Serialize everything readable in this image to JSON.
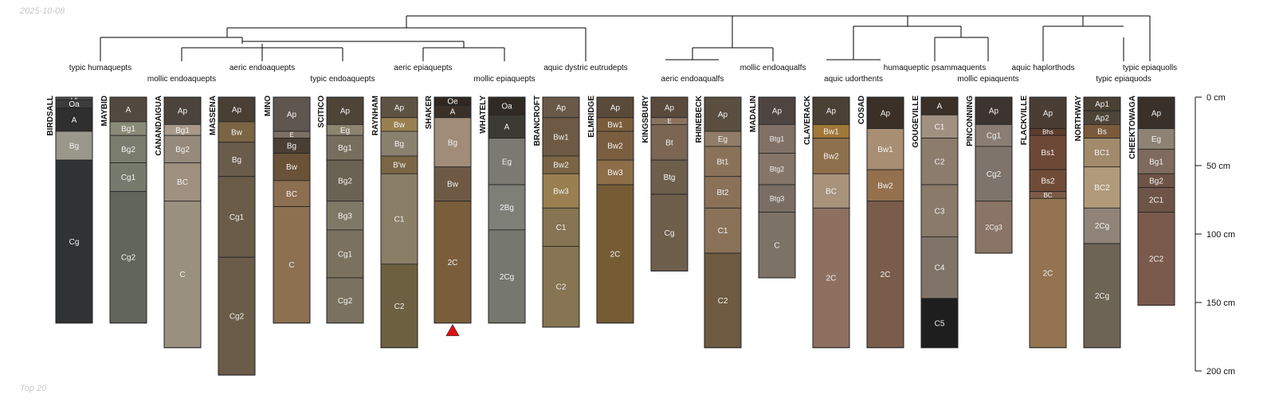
{
  "header": {
    "date": "2025-10-08"
  },
  "footer": {
    "label": "Top 20"
  },
  "colors": {
    "profile_outline": "#222222",
    "dendrogram": "#000000",
    "marker": "#e01010"
  },
  "depth_axis": {
    "unit": "cm",
    "max_depth": 200,
    "ticks": [
      0,
      50,
      100,
      150,
      200
    ]
  },
  "subgroups": [
    {
      "label": "typic humaquepts"
    },
    {
      "label": "mollic endoaquepts"
    },
    {
      "label": "aeric endoaquepts"
    },
    {
      "label": "typic endoaquepts"
    },
    {
      "label": "aeric epiaquepts"
    },
    {
      "label": "mollic epiaquepts"
    },
    {
      "label": "aquic dystric eutrudepts"
    },
    {
      "label": "aeric endoaqualfs"
    },
    {
      "label": "mollic endoaqualfs"
    },
    {
      "label": "aquic udorthents"
    },
    {
      "label": "humaqueptic psammaquents"
    },
    {
      "label": "mollic epiaquents"
    },
    {
      "label": "aquic haplorthods"
    },
    {
      "label": "typic epiaquods"
    },
    {
      "label": "typic epiaquolls"
    }
  ],
  "profiles": [
    {
      "name": "BIRDSALL",
      "horizons": [
        {
          "name": "Oi",
          "top": 0,
          "bottom": 2,
          "color": "#4a4a4a"
        },
        {
          "name": "Oa",
          "top": 2,
          "bottom": 8,
          "color": "#3c3c3c"
        },
        {
          "name": "A",
          "top": 8,
          "bottom": 25,
          "color": "#2f2f2f"
        },
        {
          "name": "Bg",
          "top": 25,
          "bottom": 46,
          "color": "#9a978b"
        },
        {
          "name": "Cg",
          "top": 46,
          "bottom": 165,
          "color": "#303234"
        }
      ]
    },
    {
      "name": "MAYBID",
      "horizons": [
        {
          "name": "A",
          "top": 0,
          "bottom": 18,
          "color": "#524a40"
        },
        {
          "name": "Bg1",
          "top": 18,
          "bottom": 28,
          "color": "#8a8a7a"
        },
        {
          "name": "Bg2",
          "top": 28,
          "bottom": 48,
          "color": "#7a7c6e"
        },
        {
          "name": "Cg1",
          "top": 48,
          "bottom": 69,
          "color": "#767a6c"
        },
        {
          "name": "Cg2",
          "top": 69,
          "bottom": 165,
          "color": "#62655a"
        }
      ]
    },
    {
      "name": "CANANDAIGUA",
      "horizons": [
        {
          "name": "Ap",
          "top": 0,
          "bottom": 20,
          "color": "#4c443c"
        },
        {
          "name": "Bg1",
          "top": 20,
          "bottom": 28,
          "color": "#a8998a"
        },
        {
          "name": "Bg2",
          "top": 28,
          "bottom": 48,
          "color": "#968a7c"
        },
        {
          "name": "BC",
          "top": 48,
          "bottom": 76,
          "color": "#a09080"
        },
        {
          "name": "C",
          "top": 76,
          "bottom": 183,
          "color": "#9a9080"
        }
      ]
    },
    {
      "name": "MASSENA",
      "horizons": [
        {
          "name": "Ap",
          "top": 0,
          "bottom": 18,
          "color": "#4a3f34"
        },
        {
          "name": "Bw",
          "top": 18,
          "bottom": 33,
          "color": "#7a6444"
        },
        {
          "name": "Bg",
          "top": 33,
          "bottom": 58,
          "color": "#6a5c4a"
        },
        {
          "name": "Cg1",
          "top": 58,
          "bottom": 117,
          "color": "#6a5c48"
        },
        {
          "name": "Cg2",
          "top": 117,
          "bottom": 203,
          "color": "#6a5c48"
        }
      ]
    },
    {
      "name": "MINO",
      "horizons": [
        {
          "name": "Ap",
          "top": 0,
          "bottom": 25,
          "color": "#605650"
        },
        {
          "name": "E",
          "top": 25,
          "bottom": 30,
          "color": "#7c6f64"
        },
        {
          "name": "Bg",
          "top": 30,
          "bottom": 41,
          "color": "#4a3f34"
        },
        {
          "name": "Bw",
          "top": 41,
          "bottom": 61,
          "color": "#6a5238"
        },
        {
          "name": "BC",
          "top": 61,
          "bottom": 80,
          "color": "#8c6e50"
        },
        {
          "name": "C",
          "top": 80,
          "bottom": 165,
          "color": "#8c7050"
        }
      ]
    },
    {
      "name": "SCITICO",
      "horizons": [
        {
          "name": "Ap",
          "top": 0,
          "bottom": 20,
          "color": "#4e4438"
        },
        {
          "name": "Eg",
          "top": 20,
          "bottom": 28,
          "color": "#8c8470"
        },
        {
          "name": "Bg1",
          "top": 28,
          "bottom": 46,
          "color": "#786e5e"
        },
        {
          "name": "Bg2",
          "top": 46,
          "bottom": 76,
          "color": "#6a6252"
        },
        {
          "name": "Bg3",
          "top": 76,
          "bottom": 97,
          "color": "#7e7866"
        },
        {
          "name": "Cg1",
          "top": 97,
          "bottom": 132,
          "color": "#7a725e"
        },
        {
          "name": "Cg2",
          "top": 132,
          "bottom": 165,
          "color": "#7a725e"
        }
      ]
    },
    {
      "name": "RAYNHAM",
      "horizons": [
        {
          "name": "Ap",
          "top": 0,
          "bottom": 15,
          "color": "#5e5242"
        },
        {
          "name": "Bw",
          "top": 15,
          "bottom": 25,
          "color": "#9a8050"
        },
        {
          "name": "Bg",
          "top": 25,
          "bottom": 43,
          "color": "#8a806e"
        },
        {
          "name": "B'w",
          "top": 43,
          "bottom": 56,
          "color": "#7a6644"
        },
        {
          "name": "C1",
          "top": 56,
          "bottom": 122,
          "color": "#8a7e66"
        },
        {
          "name": "C2",
          "top": 122,
          "bottom": 183,
          "color": "#6c6040"
        }
      ]
    },
    {
      "name": "SHAKER",
      "horizons": [
        {
          "name": "Oe",
          "top": 0,
          "bottom": 6,
          "color": "#302820"
        },
        {
          "name": "A",
          "top": 6,
          "bottom": 15,
          "color": "#3a3028"
        },
        {
          "name": "Bg",
          "top": 15,
          "bottom": 51,
          "color": "#a08c78"
        },
        {
          "name": "Bw",
          "top": 51,
          "bottom": 76,
          "color": "#6e5a44"
        },
        {
          "name": "2C",
          "top": 76,
          "bottom": 165,
          "color": "#7a5e3c"
        }
      ]
    },
    {
      "name": "WHATELY",
      "horizons": [
        {
          "name": "Oa",
          "top": 0,
          "bottom": 13,
          "color": "#302a24"
        },
        {
          "name": "A",
          "top": 13,
          "bottom": 30,
          "color": "#3c3a34"
        },
        {
          "name": "Eg",
          "top": 30,
          "bottom": 64,
          "color": "#7a7a72"
        },
        {
          "name": "2Bg",
          "top": 64,
          "bottom": 97,
          "color": "#7e8078"
        },
        {
          "name": "2Cg",
          "top": 97,
          "bottom": 165,
          "color": "#767870"
        }
      ]
    },
    {
      "name": "BRANCROFT",
      "horizons": [
        {
          "name": "Ap",
          "top": 0,
          "bottom": 15,
          "color": "#6a5848"
        },
        {
          "name": "Bw1",
          "top": 15,
          "bottom": 43,
          "color": "#6e5a44"
        },
        {
          "name": "Bw2",
          "top": 43,
          "bottom": 56,
          "color": "#7a6444"
        },
        {
          "name": "Bw3",
          "top": 56,
          "bottom": 81,
          "color": "#9a8050"
        },
        {
          "name": "C1",
          "top": 81,
          "bottom": 109,
          "color": "#867452"
        },
        {
          "name": "C2",
          "top": 109,
          "bottom": 168,
          "color": "#867452"
        }
      ]
    },
    {
      "name": "ELMRIDGE",
      "horizons": [
        {
          "name": "Ap",
          "top": 0,
          "bottom": 15,
          "color": "#5a4a3a"
        },
        {
          "name": "Bw1",
          "top": 15,
          "bottom": 25,
          "color": "#7a5e3c"
        },
        {
          "name": "Bw2",
          "top": 25,
          "bottom": 46,
          "color": "#7a5e40"
        },
        {
          "name": "Bw3",
          "top": 46,
          "bottom": 64,
          "color": "#8e6e48"
        },
        {
          "name": "2C",
          "top": 64,
          "bottom": 165,
          "color": "#765c34"
        }
      ]
    },
    {
      "name": "KINGSBURY",
      "horizons": [
        {
          "name": "Ap",
          "top": 0,
          "bottom": 15,
          "color": "#5a4a3c"
        },
        {
          "name": "E",
          "top": 15,
          "bottom": 20,
          "color": "#8a7460"
        },
        {
          "name": "Bt",
          "top": 20,
          "bottom": 46,
          "color": "#7a6652"
        },
        {
          "name": "Btg",
          "top": 46,
          "bottom": 71,
          "color": "#6e5e4c"
        },
        {
          "name": "Cg",
          "top": 71,
          "bottom": 127,
          "color": "#6e5e4c"
        }
      ]
    },
    {
      "name": "RHINEBECK",
      "horizons": [
        {
          "name": "Ap",
          "top": 0,
          "bottom": 25,
          "color": "#5a4e40"
        },
        {
          "name": "Eg",
          "top": 25,
          "bottom": 36,
          "color": "#907c68"
        },
        {
          "name": "Bt1",
          "top": 36,
          "bottom": 58,
          "color": "#8a7258"
        },
        {
          "name": "Bt2",
          "top": 58,
          "bottom": 81,
          "color": "#8a7258"
        },
        {
          "name": "C1",
          "top": 81,
          "bottom": 114,
          "color": "#8a7258"
        },
        {
          "name": "C2",
          "top": 114,
          "bottom": 183,
          "color": "#6e5a40"
        }
      ]
    },
    {
      "name": "MADALIN",
      "horizons": [
        {
          "name": "Ap",
          "top": 0,
          "bottom": 20,
          "color": "#4e4440"
        },
        {
          "name": "Btg1",
          "top": 20,
          "bottom": 41,
          "color": "#807066"
        },
        {
          "name": "Btg2",
          "top": 41,
          "bottom": 64,
          "color": "#857568"
        },
        {
          "name": "Btg3",
          "top": 64,
          "bottom": 84,
          "color": "#7a6e64"
        },
        {
          "name": "C",
          "top": 84,
          "bottom": 132,
          "color": "#7c7266"
        }
      ]
    },
    {
      "name": "CLAVERACK",
      "horizons": [
        {
          "name": "Ap",
          "top": 0,
          "bottom": 20,
          "color": "#4a4034"
        },
        {
          "name": "Bw1",
          "top": 20,
          "bottom": 30,
          "color": "#a07838"
        },
        {
          "name": "Bw2",
          "top": 30,
          "bottom": 56,
          "color": "#8e704c"
        },
        {
          "name": "BC",
          "top": 56,
          "bottom": 81,
          "color": "#a8927a"
        },
        {
          "name": "2C",
          "top": 81,
          "bottom": 183,
          "color": "#8e7060"
        }
      ]
    },
    {
      "name": "COSAD",
      "horizons": [
        {
          "name": "Ap",
          "top": 0,
          "bottom": 23,
          "color": "#3a3028"
        },
        {
          "name": "Bw1",
          "top": 23,
          "bottom": 53,
          "color": "#a88e72"
        },
        {
          "name": "Bw2",
          "top": 53,
          "bottom": 76,
          "color": "#94704e"
        },
        {
          "name": "2C",
          "top": 76,
          "bottom": 183,
          "color": "#7a5c4a"
        }
      ]
    },
    {
      "name": "GOUGEVILLE",
      "horizons": [
        {
          "name": "A",
          "top": 0,
          "bottom": 13,
          "color": "#3a3028"
        },
        {
          "name": "C1",
          "top": 13,
          "bottom": 30,
          "color": "#a09080"
        },
        {
          "name": "C2",
          "top": 30,
          "bottom": 64,
          "color": "#8c7c6c"
        },
        {
          "name": "C3",
          "top": 64,
          "bottom": 102,
          "color": "#8a7a6a"
        },
        {
          "name": "C4",
          "top": 102,
          "bottom": 147,
          "color": "#807468"
        },
        {
          "name": "C5",
          "top": 147,
          "bottom": 183,
          "color": "#1e1e1e"
        }
      ]
    },
    {
      "name": "PINCONNING",
      "horizons": [
        {
          "name": "Ap",
          "top": 0,
          "bottom": 20,
          "color": "#3c3430"
        },
        {
          "name": "Cg1",
          "top": 20,
          "bottom": 36,
          "color": "#8a7e74"
        },
        {
          "name": "Cg2",
          "top": 36,
          "bottom": 76,
          "color": "#7e746c"
        },
        {
          "name": "2Cg3",
          "top": 76,
          "bottom": 114,
          "color": "#8a7466"
        }
      ]
    },
    {
      "name": "FLACKVILLE",
      "horizons": [
        {
          "name": "Ap",
          "top": 0,
          "bottom": 23,
          "color": "#4a3e34"
        },
        {
          "name": "Bhs",
          "top": 23,
          "bottom": 28,
          "color": "#5c3c2c"
        },
        {
          "name": "Bs1",
          "top": 28,
          "bottom": 53,
          "color": "#6e4836"
        },
        {
          "name": "Bs2",
          "top": 53,
          "bottom": 69,
          "color": "#704c38"
        },
        {
          "name": "BC",
          "top": 69,
          "bottom": 74,
          "color": "#7c5c48"
        },
        {
          "name": "2C",
          "top": 74,
          "bottom": 183,
          "color": "#947450"
        }
      ]
    },
    {
      "name": "NORTHWAY",
      "horizons": [
        {
          "name": "Ap1",
          "top": 0,
          "bottom": 10,
          "color": "#4a4034"
        },
        {
          "name": "Ap2",
          "top": 10,
          "bottom": 20,
          "color": "#4e4438"
        },
        {
          "name": "Bs",
          "top": 20,
          "bottom": 30,
          "color": "#7a5a3a"
        },
        {
          "name": "BC1",
          "top": 30,
          "bottom": 51,
          "color": "#a28a6c"
        },
        {
          "name": "BC2",
          "top": 51,
          "bottom": 81,
          "color": "#b09a7a"
        },
        {
          "name": "2Cg",
          "top": 81,
          "bottom": 107,
          "color": "#908478"
        },
        {
          "name": "2Cg",
          "top": 107,
          "bottom": 183,
          "color": "#6e6456"
        }
      ]
    },
    {
      "name": "CHEEKTOWAGA",
      "horizons": [
        {
          "name": "Ap",
          "top": 0,
          "bottom": 23,
          "color": "#3a302a"
        },
        {
          "name": "Eg",
          "top": 23,
          "bottom": 38,
          "color": "#8e8274"
        },
        {
          "name": "Bg1",
          "top": 38,
          "bottom": 56,
          "color": "#7e6a5e"
        },
        {
          "name": "Bg2",
          "top": 56,
          "bottom": 66,
          "color": "#6e5446"
        },
        {
          "name": "2C1",
          "top": 66,
          "bottom": 84,
          "color": "#6e5446"
        },
        {
          "name": "2C2",
          "top": 84,
          "bottom": 152,
          "color": "#7a5a4c"
        }
      ]
    }
  ]
}
